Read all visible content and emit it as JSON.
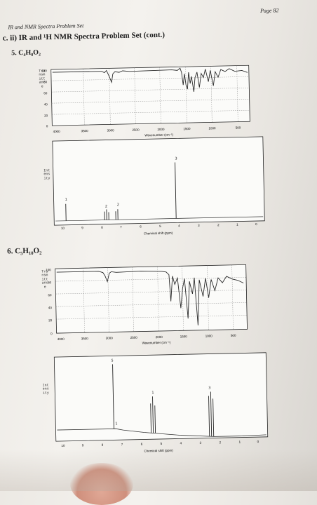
{
  "header": {
    "page_number": "Page 82",
    "set_title": "IR and NMR Spectra Problem Set",
    "section_title": "c. ii)  IR and ¹H NMR Spectra Problem Set (cont.)"
  },
  "problems": [
    {
      "label": "5.  C₄H₈O₂",
      "ir": {
        "y_axis_label": "Transmittance",
        "y_ticks": [
          "100",
          "80",
          "60",
          "40",
          "20",
          "0"
        ],
        "x_ticks": [
          "4000",
          "3500",
          "3000",
          "2500",
          "2000",
          "1500",
          "1000",
          "500"
        ],
        "x_title": "Wavenumber (cm⁻¹)"
      },
      "nmr": {
        "y_axis_label": "Intensity",
        "x_ticks": [
          "10",
          "9",
          "8",
          "7",
          "6",
          "5",
          "4",
          "3",
          "2",
          "1",
          "0"
        ],
        "x_title": "Chemical shift (ppm)",
        "peak_labels": [
          "1",
          "2",
          "2",
          "3"
        ]
      }
    },
    {
      "label": "6.  C₅H₁₀O₂",
      "ir": {
        "y_axis_label": "Transmittance",
        "y_ticks": [
          "100",
          "80",
          "60",
          "40",
          "20",
          "0"
        ],
        "x_ticks": [
          "4000",
          "3500",
          "3000",
          "2500",
          "2000",
          "1500",
          "1000",
          "500"
        ],
        "x_title": "Wavenumber (cm⁻¹)"
      },
      "nmr": {
        "y_axis_label": "Intensity",
        "x_ticks": [
          "10",
          "9",
          "8",
          "7",
          "6",
          "5",
          "4",
          "3",
          "2",
          "1",
          "0"
        ],
        "x_title": "Chemical shift (ppm)",
        "peak_labels": [
          "5",
          "1",
          "3",
          "1"
        ]
      }
    }
  ]
}
